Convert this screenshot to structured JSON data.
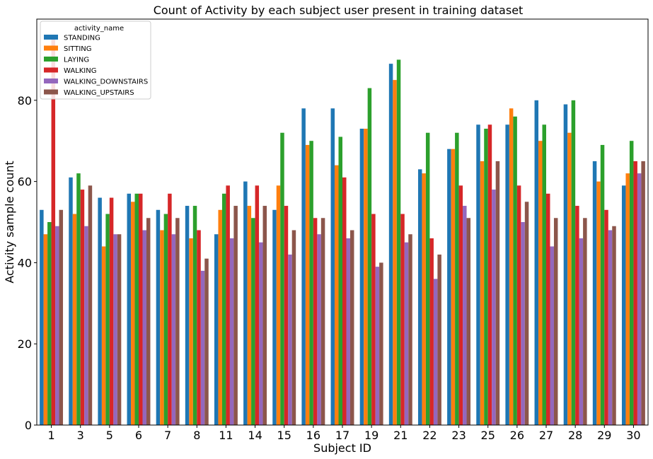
{
  "chart_data": {
    "type": "bar",
    "title": "Count of Activity by each subject user present in training dataset",
    "xlabel": "Subject ID",
    "ylabel": "Activity sample count",
    "ylim": [
      0,
      100
    ],
    "yticks": [
      0,
      20,
      40,
      60,
      80
    ],
    "categories": [
      "1",
      "3",
      "5",
      "6",
      "7",
      "8",
      "11",
      "14",
      "15",
      "16",
      "17",
      "19",
      "21",
      "22",
      "23",
      "25",
      "26",
      "27",
      "28",
      "29",
      "30"
    ],
    "legend": {
      "title": "activity_name",
      "placement": "top-left"
    },
    "grid": false,
    "series": [
      {
        "name": "STANDING",
        "color": "#1f77b4",
        "values": [
          53,
          61,
          56,
          57,
          53,
          54,
          47,
          60,
          53,
          78,
          78,
          73,
          89,
          63,
          68,
          74,
          74,
          80,
          79,
          65,
          59
        ]
      },
      {
        "name": "SITTING",
        "color": "#ff7f0e",
        "values": [
          47,
          52,
          44,
          55,
          48,
          46,
          53,
          54,
          59,
          69,
          64,
          73,
          85,
          62,
          68,
          65,
          78,
          70,
          72,
          60,
          62
        ]
      },
      {
        "name": "LAYING",
        "color": "#2ca02c",
        "values": [
          50,
          62,
          52,
          57,
          52,
          54,
          57,
          51,
          72,
          70,
          71,
          83,
          90,
          72,
          72,
          73,
          76,
          74,
          80,
          69,
          70
        ]
      },
      {
        "name": "WALKING",
        "color": "#d62728",
        "values": [
          95,
          58,
          56,
          57,
          57,
          48,
          59,
          59,
          54,
          51,
          61,
          52,
          52,
          46,
          59,
          74,
          59,
          57,
          54,
          53,
          65
        ]
      },
      {
        "name": "WALKING_DOWNSTAIRS",
        "color": "#9467bd",
        "values": [
          49,
          49,
          47,
          48,
          47,
          38,
          46,
          45,
          42,
          47,
          46,
          39,
          45,
          36,
          54,
          58,
          50,
          44,
          46,
          48,
          62
        ]
      },
      {
        "name": "WALKING_UPSTAIRS",
        "color": "#8c564b",
        "values": [
          53,
          59,
          47,
          51,
          51,
          41,
          54,
          54,
          48,
          51,
          48,
          40,
          47,
          42,
          51,
          65,
          55,
          51,
          51,
          49,
          65
        ]
      }
    ]
  }
}
